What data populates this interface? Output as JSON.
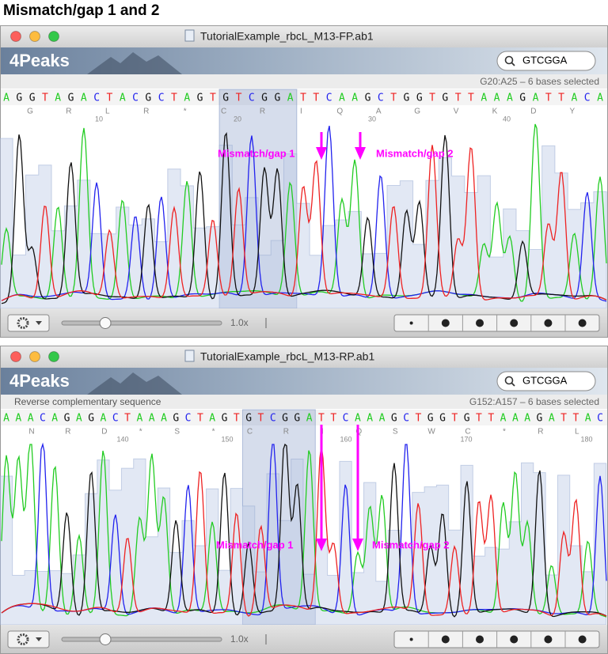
{
  "title": "Mismatch/gap 1 and 2",
  "windows": [
    {
      "filename": "TutorialExample_rbcL_M13-FP.ab1",
      "logo": "4Peaks",
      "search": "GTCGGA",
      "selection": "G20:A25 – 6 bases selected",
      "bases": [
        "A",
        "G",
        "G",
        "T",
        "A",
        "G",
        "A",
        "C",
        "T",
        "A",
        "C",
        "G",
        "C",
        "T",
        "A",
        "G",
        "T",
        "G",
        "T",
        "C",
        "G",
        "G",
        "A",
        "T",
        "T",
        "C",
        "A",
        "A",
        "G",
        "C",
        "T",
        "G",
        "G",
        "T",
        "G",
        "T",
        "T",
        "A",
        "A",
        "A",
        "G",
        "A",
        "T",
        "T",
        "A",
        "C",
        "A"
      ],
      "amino_acids": [
        "G",
        "R",
        "L",
        "R",
        "*",
        "C",
        "R",
        "I",
        "Q",
        "A",
        "G",
        "V",
        "K",
        "D",
        "Y"
      ],
      "positions": [
        10,
        20,
        30,
        40
      ],
      "annotations": [
        "Mismatch/gap 1",
        "Mismatch/gap 2"
      ],
      "zoom": "1.0x"
    },
    {
      "filename": "TutorialExample_rbcL_M13-RP.ab1",
      "logo": "4Peaks",
      "search": "GTCGGA",
      "subtitle": "Reverse complementary sequence",
      "selection": "G152:A157 – 6 bases selected",
      "bases": [
        "A",
        "A",
        "A",
        "C",
        "A",
        "G",
        "A",
        "G",
        "A",
        "C",
        "T",
        "A",
        "A",
        "A",
        "G",
        "C",
        "T",
        "A",
        "G",
        "T",
        "G",
        "T",
        "C",
        "G",
        "G",
        "A",
        "T",
        "T",
        "C",
        "A",
        "A",
        "A",
        "G",
        "C",
        "T",
        "G",
        "G",
        "T",
        "G",
        "T",
        "T",
        "A",
        "A",
        "A",
        "G",
        "A",
        "T",
        "T",
        "A",
        "C"
      ],
      "amino_acids": [
        "N",
        "R",
        "D",
        "*",
        "S",
        "*",
        "C",
        "R",
        "I",
        "Q",
        "S",
        "W",
        "C",
        "*",
        "R",
        "L"
      ],
      "positions": [
        140,
        150,
        160,
        170,
        180
      ],
      "annotations": [
        "Mismatch/gap 1",
        "Mismatch/gap 2"
      ],
      "zoom": "1.0x"
    }
  ]
}
